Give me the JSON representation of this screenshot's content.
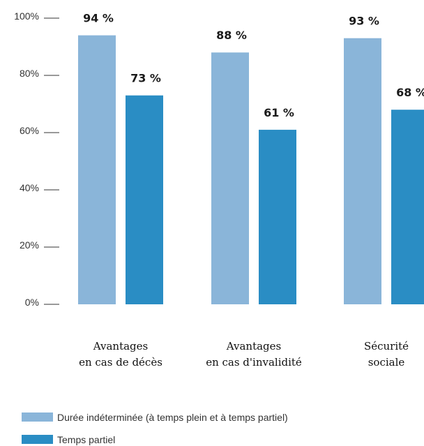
{
  "chart_data": {
    "type": "bar",
    "categories": [
      [
        "Avantages",
        "en cas de décès"
      ],
      [
        "Avantages",
        "en cas d'invalidité"
      ],
      [
        "Sécurité",
        "sociale"
      ]
    ],
    "series": [
      {
        "name": "Durée indéterminée (à temps plein et à temps partiel)",
        "color": "#8AB5D9",
        "values": [
          94,
          88,
          93
        ],
        "labels": [
          "94 %",
          "88 %",
          "93 %"
        ]
      },
      {
        "name": "Temps partiel",
        "color": "#2A8DC4",
        "values": [
          73,
          61,
          68
        ],
        "labels": [
          "73 %",
          "61 %",
          "68 %"
        ]
      }
    ],
    "ylim": [
      0,
      100
    ],
    "yticks": [
      0,
      20,
      40,
      60,
      80,
      100
    ],
    "ytick_labels": [
      "0%",
      "20%",
      "40%",
      "60%",
      "80%",
      "100%"
    ],
    "grid": false,
    "legend_position": "bottom-left"
  }
}
